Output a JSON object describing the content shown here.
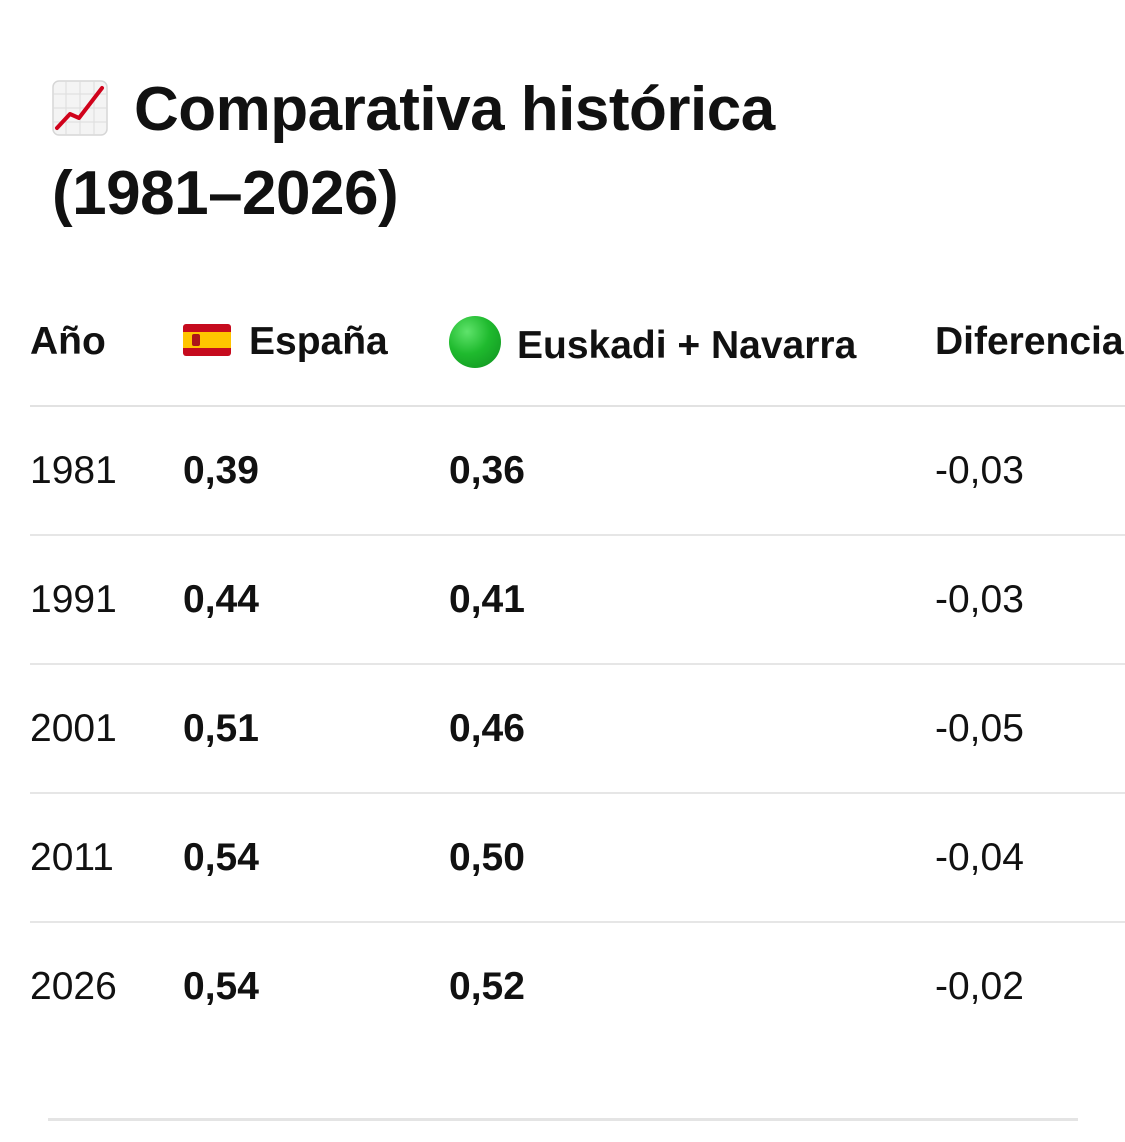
{
  "title": {
    "icon": "chart-increasing-icon",
    "text": "Comparativa histórica (1981–2026)"
  },
  "table": {
    "headers": {
      "year": "Año",
      "espana": "España",
      "espana_icon": "spain-flag-icon",
      "euskadi": "Euskadi + Navarra",
      "euskadi_icon": "green-circle-icon",
      "diferencia": "Diferencia"
    },
    "rows": [
      {
        "year": "1981",
        "espana": "0,39",
        "euskadi": "0,36",
        "diferencia": "-0,03"
      },
      {
        "year": "1991",
        "espana": "0,44",
        "euskadi": "0,41",
        "diferencia": "-0,03"
      },
      {
        "year": "2001",
        "espana": "0,51",
        "euskadi": "0,46",
        "diferencia": "-0,05"
      },
      {
        "year": "2011",
        "espana": "0,54",
        "euskadi": "0,50",
        "diferencia": "-0,04"
      },
      {
        "year": "2026",
        "espana": "0,54",
        "euskadi": "0,52",
        "diferencia": "-0,02"
      }
    ]
  },
  "colors": {
    "text": "#111111",
    "divider": "#e6e6e6",
    "chart_icon_line": "#d0021b",
    "green_dot": "#1fba2e"
  }
}
